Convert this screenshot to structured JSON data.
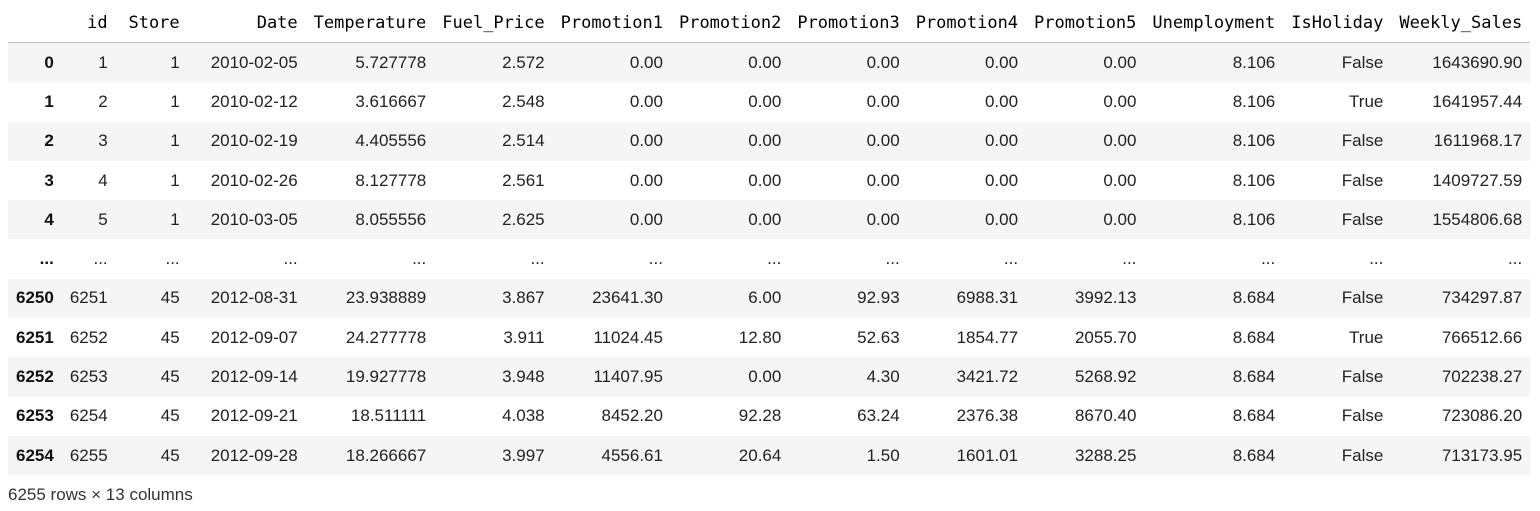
{
  "table": {
    "index_header": "",
    "columns": [
      "id",
      "Store",
      "Date",
      "Temperature",
      "Fuel_Price",
      "Promotion1",
      "Promotion2",
      "Promotion3",
      "Promotion4",
      "Promotion5",
      "Unemployment",
      "IsHoliday",
      "Weekly_Sales"
    ],
    "rows": [
      {
        "index": "0",
        "cells": [
          "1",
          "1",
          "2010-02-05",
          "5.727778",
          "2.572",
          "0.00",
          "0.00",
          "0.00",
          "0.00",
          "0.00",
          "8.106",
          "False",
          "1643690.90"
        ]
      },
      {
        "index": "1",
        "cells": [
          "2",
          "1",
          "2010-02-12",
          "3.616667",
          "2.548",
          "0.00",
          "0.00",
          "0.00",
          "0.00",
          "0.00",
          "8.106",
          "True",
          "1641957.44"
        ]
      },
      {
        "index": "2",
        "cells": [
          "3",
          "1",
          "2010-02-19",
          "4.405556",
          "2.514",
          "0.00",
          "0.00",
          "0.00",
          "0.00",
          "0.00",
          "8.106",
          "False",
          "1611968.17"
        ]
      },
      {
        "index": "3",
        "cells": [
          "4",
          "1",
          "2010-02-26",
          "8.127778",
          "2.561",
          "0.00",
          "0.00",
          "0.00",
          "0.00",
          "0.00",
          "8.106",
          "False",
          "1409727.59"
        ]
      },
      {
        "index": "4",
        "cells": [
          "5",
          "1",
          "2010-03-05",
          "8.055556",
          "2.625",
          "0.00",
          "0.00",
          "0.00",
          "0.00",
          "0.00",
          "8.106",
          "False",
          "1554806.68"
        ]
      },
      {
        "index": "...",
        "cells": [
          "...",
          "...",
          "...",
          "...",
          "...",
          "...",
          "...",
          "...",
          "...",
          "...",
          "...",
          "...",
          "..."
        ]
      },
      {
        "index": "6250",
        "cells": [
          "6251",
          "45",
          "2012-08-31",
          "23.938889",
          "3.867",
          "23641.30",
          "6.00",
          "92.93",
          "6988.31",
          "3992.13",
          "8.684",
          "False",
          "734297.87"
        ]
      },
      {
        "index": "6251",
        "cells": [
          "6252",
          "45",
          "2012-09-07",
          "24.277778",
          "3.911",
          "11024.45",
          "12.80",
          "52.63",
          "1854.77",
          "2055.70",
          "8.684",
          "True",
          "766512.66"
        ]
      },
      {
        "index": "6252",
        "cells": [
          "6253",
          "45",
          "2012-09-14",
          "19.927778",
          "3.948",
          "11407.95",
          "0.00",
          "4.30",
          "3421.72",
          "5268.92",
          "8.684",
          "False",
          "702238.27"
        ]
      },
      {
        "index": "6253",
        "cells": [
          "6254",
          "45",
          "2012-09-21",
          "18.511111",
          "4.038",
          "8452.20",
          "92.28",
          "63.24",
          "2376.38",
          "8670.40",
          "8.684",
          "False",
          "723086.20"
        ]
      },
      {
        "index": "6254",
        "cells": [
          "6255",
          "45",
          "2012-09-28",
          "18.266667",
          "3.997",
          "4556.61",
          "20.64",
          "1.50",
          "1601.01",
          "3288.25",
          "8.684",
          "False",
          "713173.95"
        ]
      }
    ]
  },
  "footer": {
    "shape_text": "6255 rows × 13 columns"
  }
}
